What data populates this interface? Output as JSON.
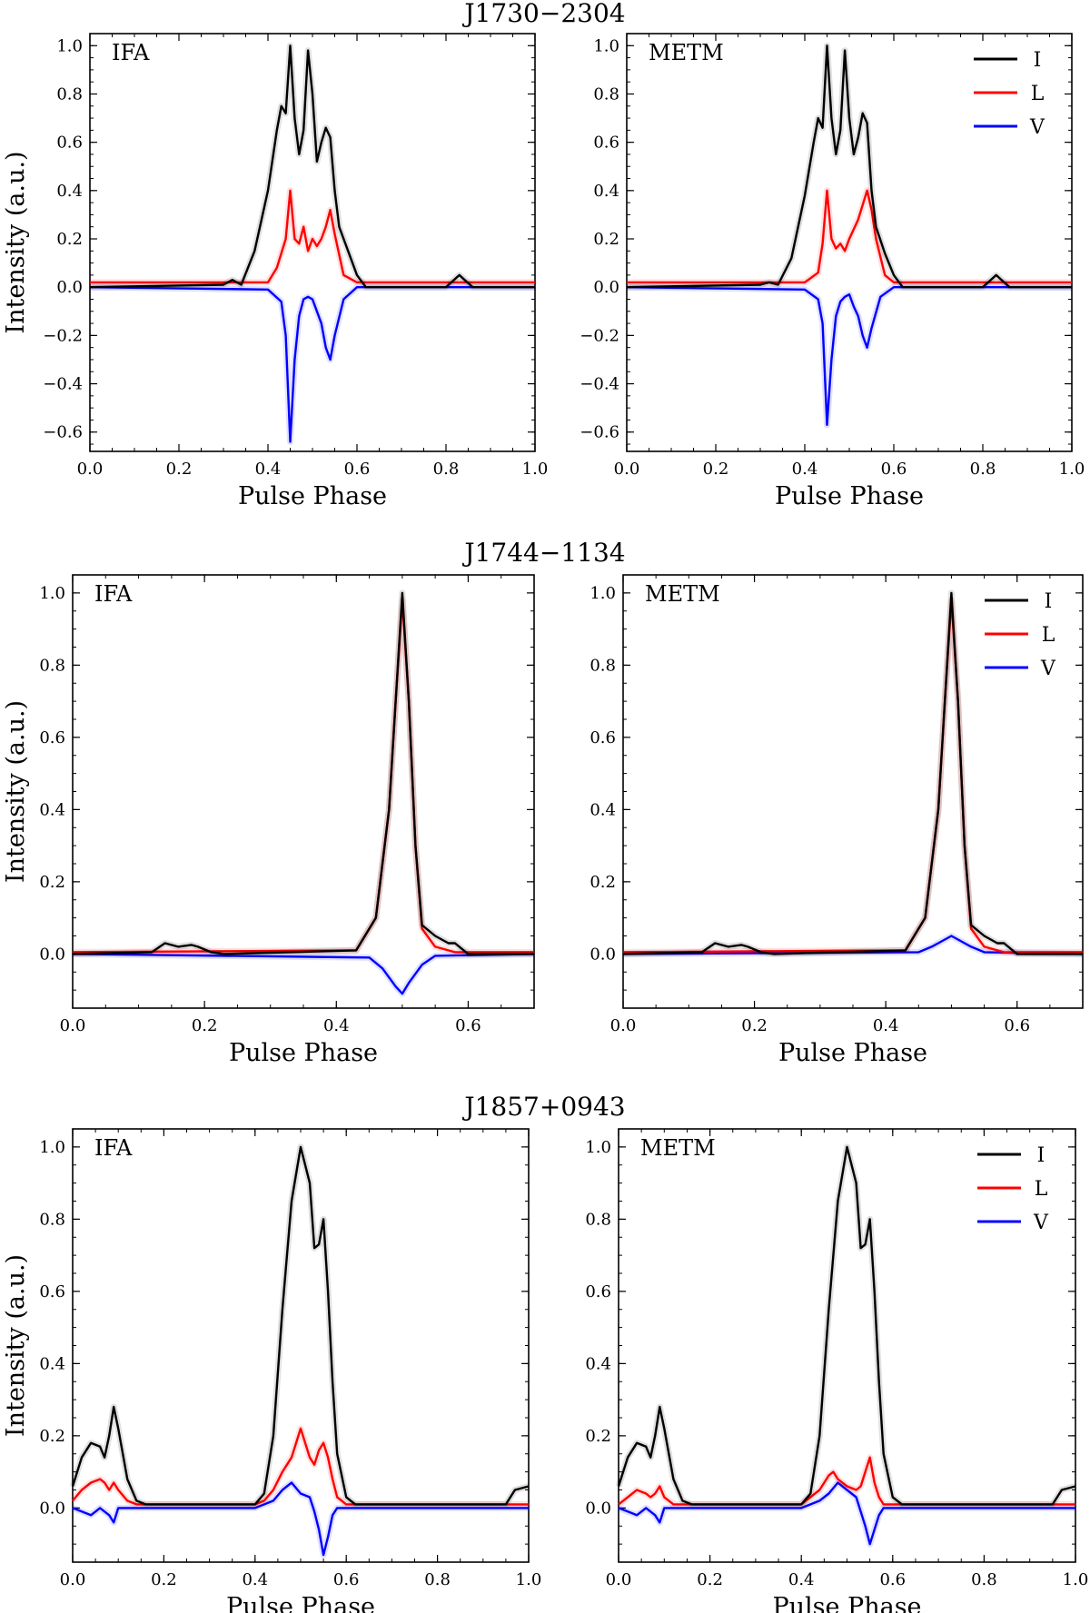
{
  "figure": {
    "rows": [
      {
        "title": "J1730−2304",
        "xlim": [
          0,
          1.0
        ],
        "ylim": [
          -0.68,
          1.05
        ],
        "xticks": [
          0.0,
          0.2,
          0.4,
          0.6,
          0.8,
          1.0
        ],
        "xtick_labels": [
          "0.0",
          "0.2",
          "0.4",
          "0.6",
          "0.8",
          "1.0"
        ],
        "yticks": [
          -0.6,
          -0.4,
          -0.2,
          0.0,
          0.2,
          0.4,
          0.6,
          0.8,
          1.0
        ],
        "ytick_labels": [
          "−0.6",
          "−0.4",
          "−0.2",
          "0.0",
          "0.2",
          "0.4",
          "0.6",
          "0.8",
          "1.0"
        ]
      },
      {
        "title": "J1744−1134",
        "xlim": [
          0,
          0.7
        ],
        "ylim": [
          -0.15,
          1.05
        ],
        "xticks": [
          0.0,
          0.2,
          0.4,
          0.6
        ],
        "xtick_labels": [
          "0.0",
          "0.2",
          "0.4",
          "0.6"
        ],
        "yticks": [
          0.0,
          0.2,
          0.4,
          0.6,
          0.8,
          1.0
        ],
        "ytick_labels": [
          "0.0",
          "0.2",
          "0.4",
          "0.6",
          "0.8",
          "1.0"
        ]
      },
      {
        "title": "J1857+0943",
        "xlim": [
          0,
          1.0
        ],
        "ylim": [
          -0.15,
          1.05
        ],
        "xticks": [
          0.0,
          0.2,
          0.4,
          0.6,
          0.8,
          1.0
        ],
        "xtick_labels": [
          "0.0",
          "0.2",
          "0.4",
          "0.6",
          "0.8",
          "1.0"
        ],
        "yticks": [
          0.0,
          0.2,
          0.4,
          0.6,
          0.8,
          1.0
        ],
        "ytick_labels": [
          "0.0",
          "0.2",
          "0.4",
          "0.6",
          "0.8",
          "1.0"
        ]
      }
    ],
    "xlabel": "Pulse Phase",
    "ylabel": "Intensity (a.u.)",
    "panel_labels": [
      "IFA",
      "METM"
    ],
    "legend": [
      "I",
      "L",
      "V"
    ],
    "colors": {
      "I": "#000000",
      "L": "#ff0000",
      "V": "#0000ff"
    }
  },
  "chart_data": [
    {
      "type": "line",
      "title": "J1730−2304",
      "panel": "IFA",
      "xlabel": "Pulse Phase",
      "ylabel": "Intensity (a.u.)",
      "xlim": [
        0,
        1.0
      ],
      "ylim": [
        -0.68,
        1.05
      ],
      "series": [
        {
          "name": "I",
          "x": [
            0,
            0.3,
            0.32,
            0.34,
            0.37,
            0.4,
            0.42,
            0.43,
            0.44,
            0.45,
            0.46,
            0.47,
            0.48,
            0.49,
            0.5,
            0.51,
            0.52,
            0.53,
            0.54,
            0.55,
            0.56,
            0.58,
            0.6,
            0.62,
            0.8,
            0.83,
            0.86,
            1.0
          ],
          "y": [
            0,
            0.01,
            0.03,
            0.01,
            0.15,
            0.4,
            0.65,
            0.75,
            0.72,
            1.0,
            0.7,
            0.55,
            0.65,
            0.98,
            0.8,
            0.52,
            0.6,
            0.66,
            0.62,
            0.4,
            0.25,
            0.15,
            0.05,
            0,
            0,
            0.05,
            0,
            0
          ]
        },
        {
          "name": "L",
          "x": [
            0,
            0.4,
            0.42,
            0.44,
            0.45,
            0.46,
            0.47,
            0.48,
            0.49,
            0.5,
            0.51,
            0.52,
            0.53,
            0.54,
            0.55,
            0.57,
            0.6,
            1.0
          ],
          "y": [
            0.02,
            0.02,
            0.08,
            0.2,
            0.4,
            0.2,
            0.18,
            0.25,
            0.15,
            0.2,
            0.17,
            0.2,
            0.25,
            0.32,
            0.22,
            0.05,
            0.02,
            0.02
          ]
        },
        {
          "name": "V",
          "x": [
            0,
            0.4,
            0.43,
            0.44,
            0.45,
            0.46,
            0.47,
            0.48,
            0.49,
            0.5,
            0.51,
            0.52,
            0.53,
            0.54,
            0.55,
            0.57,
            0.6,
            1.0
          ],
          "y": [
            0,
            -0.01,
            -0.06,
            -0.2,
            -0.64,
            -0.3,
            -0.12,
            -0.05,
            -0.04,
            -0.05,
            -0.1,
            -0.15,
            -0.25,
            -0.3,
            -0.2,
            -0.05,
            0,
            0
          ]
        }
      ]
    },
    {
      "type": "line",
      "title": "J1730−2304",
      "panel": "METM",
      "xlabel": "Pulse Phase",
      "ylabel": "Intensity (a.u.)",
      "xlim": [
        0,
        1.0
      ],
      "ylim": [
        -0.68,
        1.05
      ],
      "series": [
        {
          "name": "I",
          "x": [
            0,
            0.3,
            0.32,
            0.34,
            0.37,
            0.4,
            0.42,
            0.43,
            0.44,
            0.45,
            0.46,
            0.47,
            0.48,
            0.49,
            0.5,
            0.51,
            0.52,
            0.53,
            0.54,
            0.55,
            0.56,
            0.58,
            0.6,
            0.62,
            0.8,
            0.83,
            0.86,
            1.0
          ],
          "y": [
            0,
            0.01,
            0.02,
            0.01,
            0.12,
            0.38,
            0.6,
            0.7,
            0.66,
            1.0,
            0.7,
            0.55,
            0.65,
            0.98,
            0.7,
            0.55,
            0.62,
            0.72,
            0.68,
            0.4,
            0.25,
            0.14,
            0.05,
            0,
            0,
            0.05,
            0,
            0
          ]
        },
        {
          "name": "L",
          "x": [
            0,
            0.4,
            0.43,
            0.44,
            0.45,
            0.46,
            0.47,
            0.48,
            0.49,
            0.5,
            0.52,
            0.54,
            0.55,
            0.56,
            0.58,
            0.6,
            1.0
          ],
          "y": [
            0.02,
            0.02,
            0.06,
            0.18,
            0.4,
            0.2,
            0.16,
            0.18,
            0.15,
            0.2,
            0.28,
            0.4,
            0.32,
            0.2,
            0.05,
            0.02,
            0.02
          ]
        },
        {
          "name": "V",
          "x": [
            0,
            0.4,
            0.43,
            0.44,
            0.45,
            0.46,
            0.47,
            0.48,
            0.49,
            0.5,
            0.51,
            0.52,
            0.53,
            0.54,
            0.55,
            0.57,
            0.6,
            1.0
          ],
          "y": [
            0,
            -0.01,
            -0.05,
            -0.15,
            -0.57,
            -0.3,
            -0.12,
            -0.06,
            -0.04,
            -0.03,
            -0.08,
            -0.12,
            -0.2,
            -0.25,
            -0.17,
            -0.04,
            0,
            0
          ]
        }
      ]
    },
    {
      "type": "line",
      "title": "J1744−1134",
      "panel": "IFA",
      "xlabel": "Pulse Phase",
      "ylabel": "Intensity (a.u.)",
      "xlim": [
        0,
        0.7
      ],
      "ylim": [
        -0.15,
        1.05
      ],
      "series": [
        {
          "name": "I",
          "x": [
            0,
            0.12,
            0.14,
            0.16,
            0.18,
            0.19,
            0.21,
            0.23,
            0.43,
            0.46,
            0.48,
            0.49,
            0.5,
            0.51,
            0.52,
            0.53,
            0.55,
            0.57,
            0.58,
            0.6,
            0.7
          ],
          "y": [
            0,
            0.005,
            0.03,
            0.02,
            0.025,
            0.02,
            0.005,
            0,
            0.01,
            0.1,
            0.4,
            0.7,
            1.0,
            0.7,
            0.3,
            0.08,
            0.05,
            0.03,
            0.03,
            0,
            0
          ]
        },
        {
          "name": "L",
          "x": [
            0,
            0.43,
            0.46,
            0.48,
            0.49,
            0.5,
            0.51,
            0.52,
            0.53,
            0.55,
            0.58,
            0.7
          ],
          "y": [
            0.005,
            0.01,
            0.1,
            0.4,
            0.7,
            0.98,
            0.7,
            0.3,
            0.07,
            0.02,
            0.005,
            0.005
          ]
        },
        {
          "name": "V",
          "x": [
            0,
            0.45,
            0.47,
            0.49,
            0.5,
            0.51,
            0.53,
            0.55,
            0.7
          ],
          "y": [
            0,
            -0.01,
            -0.04,
            -0.09,
            -0.11,
            -0.08,
            -0.03,
            -0.005,
            0
          ]
        }
      ]
    },
    {
      "type": "line",
      "title": "J1744−1134",
      "panel": "METM",
      "xlabel": "Pulse Phase",
      "ylabel": "Intensity (a.u.)",
      "xlim": [
        0,
        0.7
      ],
      "ylim": [
        -0.15,
        1.05
      ],
      "series": [
        {
          "name": "I",
          "x": [
            0,
            0.12,
            0.14,
            0.16,
            0.18,
            0.19,
            0.21,
            0.23,
            0.43,
            0.46,
            0.48,
            0.49,
            0.5,
            0.51,
            0.52,
            0.53,
            0.55,
            0.57,
            0.58,
            0.6,
            0.7
          ],
          "y": [
            0,
            0.005,
            0.03,
            0.02,
            0.025,
            0.02,
            0.005,
            0,
            0.01,
            0.1,
            0.4,
            0.7,
            1.0,
            0.7,
            0.3,
            0.08,
            0.05,
            0.03,
            0.03,
            0,
            0
          ]
        },
        {
          "name": "L",
          "x": [
            0,
            0.43,
            0.46,
            0.48,
            0.49,
            0.5,
            0.51,
            0.52,
            0.53,
            0.55,
            0.58,
            0.7
          ],
          "y": [
            0.005,
            0.01,
            0.1,
            0.4,
            0.7,
            0.98,
            0.7,
            0.3,
            0.07,
            0.02,
            0.005,
            0.005
          ]
        },
        {
          "name": "V",
          "x": [
            0,
            0.45,
            0.47,
            0.49,
            0.5,
            0.51,
            0.53,
            0.55,
            0.7
          ],
          "y": [
            0,
            0.005,
            0.02,
            0.04,
            0.05,
            0.04,
            0.02,
            0.005,
            0
          ]
        }
      ]
    },
    {
      "type": "line",
      "title": "J1857+0943",
      "panel": "IFA",
      "xlabel": "Pulse Phase",
      "ylabel": "Intensity (a.u.)",
      "xlim": [
        0,
        1.0
      ],
      "ylim": [
        -0.15,
        1.05
      ],
      "series": [
        {
          "name": "I",
          "x": [
            0,
            0.02,
            0.04,
            0.06,
            0.07,
            0.08,
            0.09,
            0.1,
            0.12,
            0.14,
            0.16,
            0.4,
            0.42,
            0.44,
            0.46,
            0.48,
            0.5,
            0.52,
            0.53,
            0.54,
            0.55,
            0.56,
            0.57,
            0.58,
            0.6,
            0.62,
            0.95,
            0.97,
            1.0
          ],
          "y": [
            0.06,
            0.14,
            0.18,
            0.17,
            0.14,
            0.2,
            0.28,
            0.22,
            0.08,
            0.02,
            0.01,
            0.01,
            0.04,
            0.2,
            0.55,
            0.85,
            1.0,
            0.9,
            0.72,
            0.73,
            0.8,
            0.6,
            0.35,
            0.15,
            0.03,
            0.01,
            0.01,
            0.05,
            0.06
          ]
        },
        {
          "name": "L",
          "x": [
            0,
            0.02,
            0.04,
            0.06,
            0.07,
            0.08,
            0.09,
            0.1,
            0.12,
            0.14,
            0.16,
            0.4,
            0.42,
            0.44,
            0.46,
            0.48,
            0.5,
            0.52,
            0.53,
            0.54,
            0.55,
            0.56,
            0.57,
            0.58,
            0.6,
            1.0
          ],
          "y": [
            0.02,
            0.05,
            0.07,
            0.08,
            0.07,
            0.05,
            0.07,
            0.05,
            0.02,
            0.01,
            0.01,
            0.01,
            0.02,
            0.05,
            0.1,
            0.14,
            0.22,
            0.14,
            0.12,
            0.16,
            0.18,
            0.14,
            0.08,
            0.03,
            0.01,
            0.01
          ]
        },
        {
          "name": "V",
          "x": [
            0,
            0.02,
            0.04,
            0.06,
            0.08,
            0.09,
            0.1,
            0.12,
            0.14,
            0.4,
            0.44,
            0.46,
            0.48,
            0.5,
            0.52,
            0.53,
            0.54,
            0.55,
            0.56,
            0.57,
            0.58,
            0.6,
            1.0
          ],
          "y": [
            0,
            -0.01,
            -0.02,
            0,
            -0.02,
            -0.04,
            0,
            0,
            0,
            0,
            0.02,
            0.05,
            0.07,
            0.04,
            0.03,
            -0.01,
            -0.06,
            -0.13,
            -0.08,
            -0.02,
            0,
            0,
            0
          ]
        }
      ]
    },
    {
      "type": "line",
      "title": "J1857+0943",
      "panel": "METM",
      "xlabel": "Pulse Phase",
      "ylabel": "Intensity (a.u.)",
      "xlim": [
        0,
        1.0
      ],
      "ylim": [
        -0.15,
        1.05
      ],
      "series": [
        {
          "name": "I",
          "x": [
            0,
            0.02,
            0.04,
            0.06,
            0.07,
            0.08,
            0.09,
            0.1,
            0.12,
            0.14,
            0.16,
            0.4,
            0.42,
            0.44,
            0.46,
            0.48,
            0.5,
            0.52,
            0.53,
            0.54,
            0.55,
            0.56,
            0.57,
            0.58,
            0.6,
            0.62,
            0.95,
            0.97,
            1.0
          ],
          "y": [
            0.06,
            0.14,
            0.18,
            0.17,
            0.14,
            0.2,
            0.28,
            0.22,
            0.08,
            0.02,
            0.01,
            0.01,
            0.04,
            0.2,
            0.55,
            0.85,
            1.0,
            0.9,
            0.72,
            0.73,
            0.8,
            0.6,
            0.35,
            0.15,
            0.03,
            0.01,
            0.01,
            0.05,
            0.06
          ]
        },
        {
          "name": "L",
          "x": [
            0,
            0.02,
            0.04,
            0.06,
            0.07,
            0.08,
            0.09,
            0.1,
            0.12,
            0.14,
            0.4,
            0.44,
            0.46,
            0.47,
            0.48,
            0.5,
            0.52,
            0.53,
            0.54,
            0.55,
            0.56,
            0.57,
            0.58,
            0.6,
            1.0
          ],
          "y": [
            0.01,
            0.03,
            0.05,
            0.04,
            0.03,
            0.04,
            0.06,
            0.03,
            0.01,
            0.01,
            0.01,
            0.05,
            0.09,
            0.1,
            0.08,
            0.06,
            0.05,
            0.06,
            0.1,
            0.14,
            0.07,
            0.03,
            0.01,
            0.01,
            0.01
          ]
        },
        {
          "name": "V",
          "x": [
            0,
            0.02,
            0.04,
            0.06,
            0.08,
            0.09,
            0.1,
            0.12,
            0.14,
            0.4,
            0.44,
            0.46,
            0.48,
            0.5,
            0.52,
            0.53,
            0.54,
            0.55,
            0.56,
            0.57,
            0.58,
            0.6,
            1.0
          ],
          "y": [
            0,
            -0.01,
            -0.02,
            0,
            -0.02,
            -0.04,
            0,
            0,
            0,
            0,
            0.02,
            0.04,
            0.07,
            0.05,
            0.03,
            -0.01,
            -0.05,
            -0.1,
            -0.06,
            -0.02,
            0,
            0,
            0
          ]
        }
      ]
    }
  ]
}
